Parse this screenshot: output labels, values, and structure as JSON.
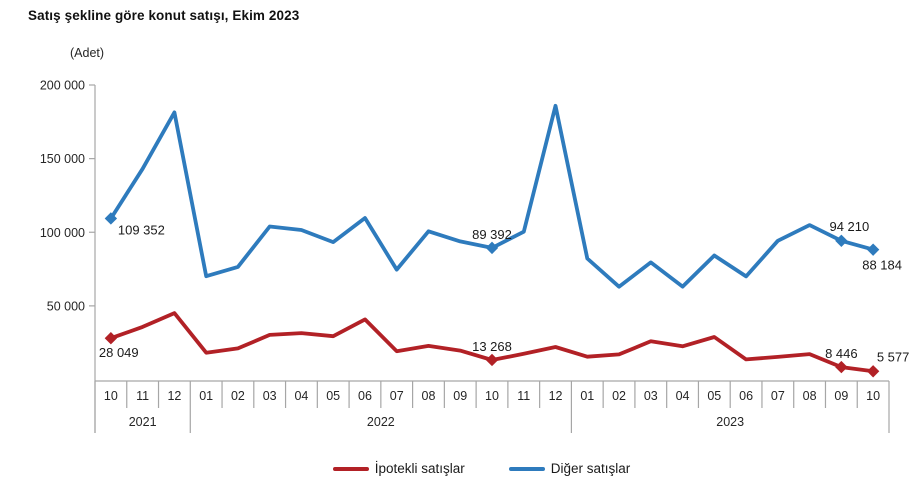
{
  "title": "Satış şekline göre konut satışı, Ekim 2023",
  "unit_label": "(Adet)",
  "colors": {
    "ipotekli": "#b22126",
    "diger": "#2e7bbd",
    "axis": "#a6a6a6",
    "axis_text": "#262626",
    "annotation_text": "#1a1a1a"
  },
  "y_axis": {
    "tick_values": [
      50000,
      100000,
      150000,
      200000
    ],
    "tick_labels": [
      "50 000",
      "100 000",
      "150 000",
      "200 000"
    ]
  },
  "x_axis": {
    "months": [
      "10",
      "11",
      "12",
      "01",
      "02",
      "03",
      "04",
      "05",
      "06",
      "07",
      "08",
      "09",
      "10",
      "11",
      "12",
      "01",
      "02",
      "03",
      "04",
      "05",
      "06",
      "07",
      "08",
      "09",
      "10"
    ],
    "year_groups": [
      {
        "label": "2021",
        "span": 3
      },
      {
        "label": "2022",
        "span": 12
      },
      {
        "label": "2023",
        "span": 10
      }
    ]
  },
  "chart_data": {
    "type": "line",
    "title": "Satış şekline göre konut satışı, Ekim 2023",
    "ylabel": "(Adet)",
    "ylim": [
      0,
      200000
    ],
    "grid": false,
    "legend_position": "bottom",
    "categories": [
      "2021-10",
      "2021-11",
      "2021-12",
      "2022-01",
      "2022-02",
      "2022-03",
      "2022-04",
      "2022-05",
      "2022-06",
      "2022-07",
      "2022-08",
      "2022-09",
      "2022-10",
      "2022-11",
      "2022-12",
      "2023-01",
      "2023-02",
      "2023-03",
      "2023-04",
      "2023-05",
      "2023-06",
      "2023-07",
      "2023-08",
      "2023-09",
      "2023-10"
    ],
    "series": [
      {
        "name": "İpotekli satışlar",
        "color": "#b22126",
        "values": [
          28049,
          35747,
          45091,
          18183,
          21147,
          30271,
          31513,
          29429,
          40809,
          19245,
          22844,
          19621,
          13268,
          17430,
          22093,
          15503,
          17020,
          25918,
          22550,
          28860,
          13650,
          15323,
          17266,
          8446,
          5577
        ]
      },
      {
        "name": "Diğer satışlar",
        "color": "#2e7bbd",
        "values": [
          109352,
          143067,
          181412,
          70123,
          76440,
          103899,
          101545,
          93339,
          109700,
          74657,
          100647,
          93781,
          89392,
          100376,
          185870,
          82205,
          63011,
          79558,
          63102,
          84183,
          69986,
          94225,
          104825,
          94210,
          88184
        ]
      }
    ],
    "annotations": [
      {
        "series": 1,
        "index": 0,
        "label": "109 352",
        "placement": "right-below"
      },
      {
        "series": 0,
        "index": 0,
        "label": "28 049",
        "placement": "below-left"
      },
      {
        "series": 1,
        "index": 12,
        "label": "89 392",
        "placement": "above"
      },
      {
        "series": 0,
        "index": 12,
        "label": "13 268",
        "placement": "above"
      },
      {
        "series": 1,
        "index": 23,
        "label": "94 210",
        "placement": "above-slight-right"
      },
      {
        "series": 1,
        "index": 24,
        "label": "88 184",
        "placement": "below-right"
      },
      {
        "series": 0,
        "index": 23,
        "label": "8 446",
        "placement": "above"
      },
      {
        "series": 0,
        "index": 24,
        "label": "5 577",
        "placement": "above-right"
      }
    ]
  },
  "legend": {
    "items": [
      {
        "label": "İpotekli satışlar",
        "color": "#b22126"
      },
      {
        "label": "Diğer satışlar",
        "color": "#2e7bbd"
      }
    ]
  }
}
